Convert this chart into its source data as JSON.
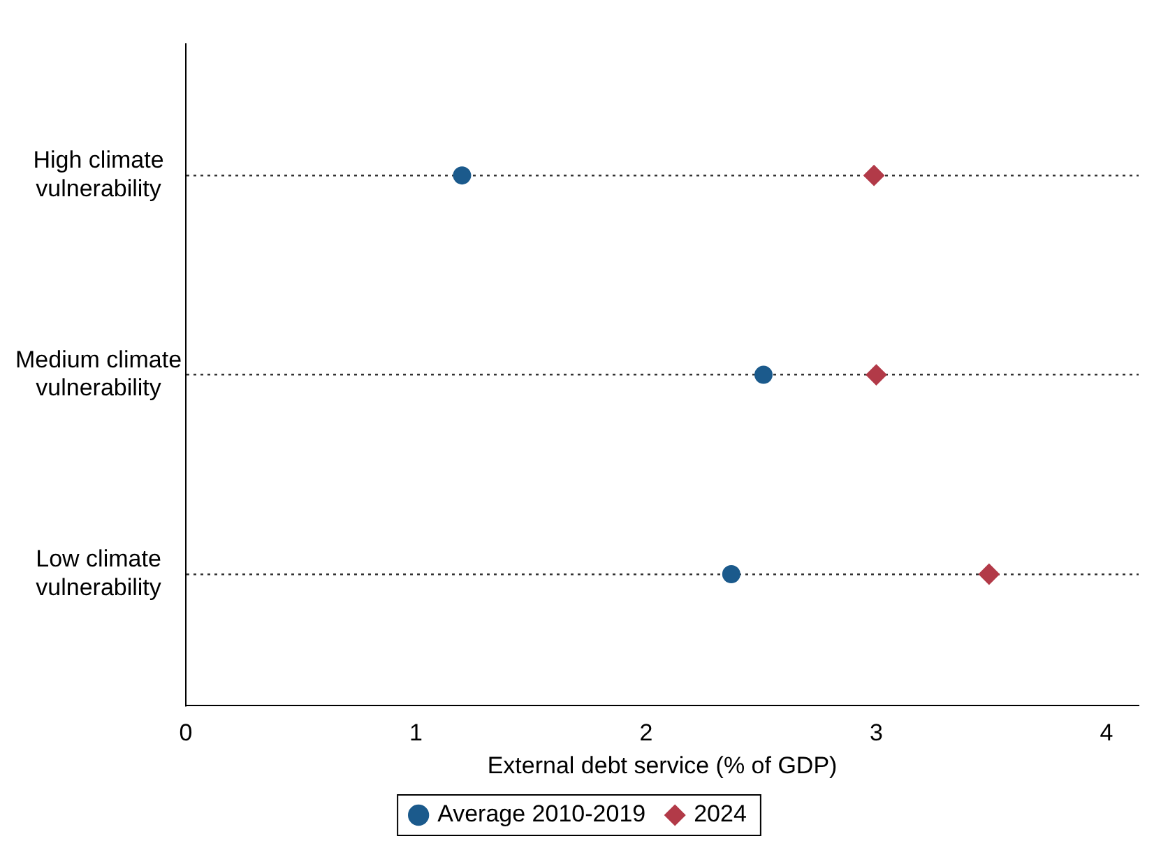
{
  "chart_data": {
    "type": "scatter",
    "orientation": "horizontal",
    "categories": [
      "High climate vulnerability",
      "Medium climate vulnerability",
      "Low climate vulnerability"
    ],
    "series": [
      {
        "name": "Average 2010-2019",
        "color": "#1b5a8c",
        "marker": "circle",
        "values": [
          1.2,
          2.51,
          2.37
        ]
      },
      {
        "name": "2024",
        "color": "#b23a48",
        "marker": "diamond",
        "values": [
          2.99,
          3.0,
          3.49
        ]
      }
    ],
    "xlabel": "External debt service (% of GDP)",
    "xlim": [
      0,
      4.14
    ],
    "xticks": [
      0,
      1,
      2,
      3,
      4
    ],
    "grid": "y",
    "line_style": "dotted",
    "legend": "bottom"
  }
}
